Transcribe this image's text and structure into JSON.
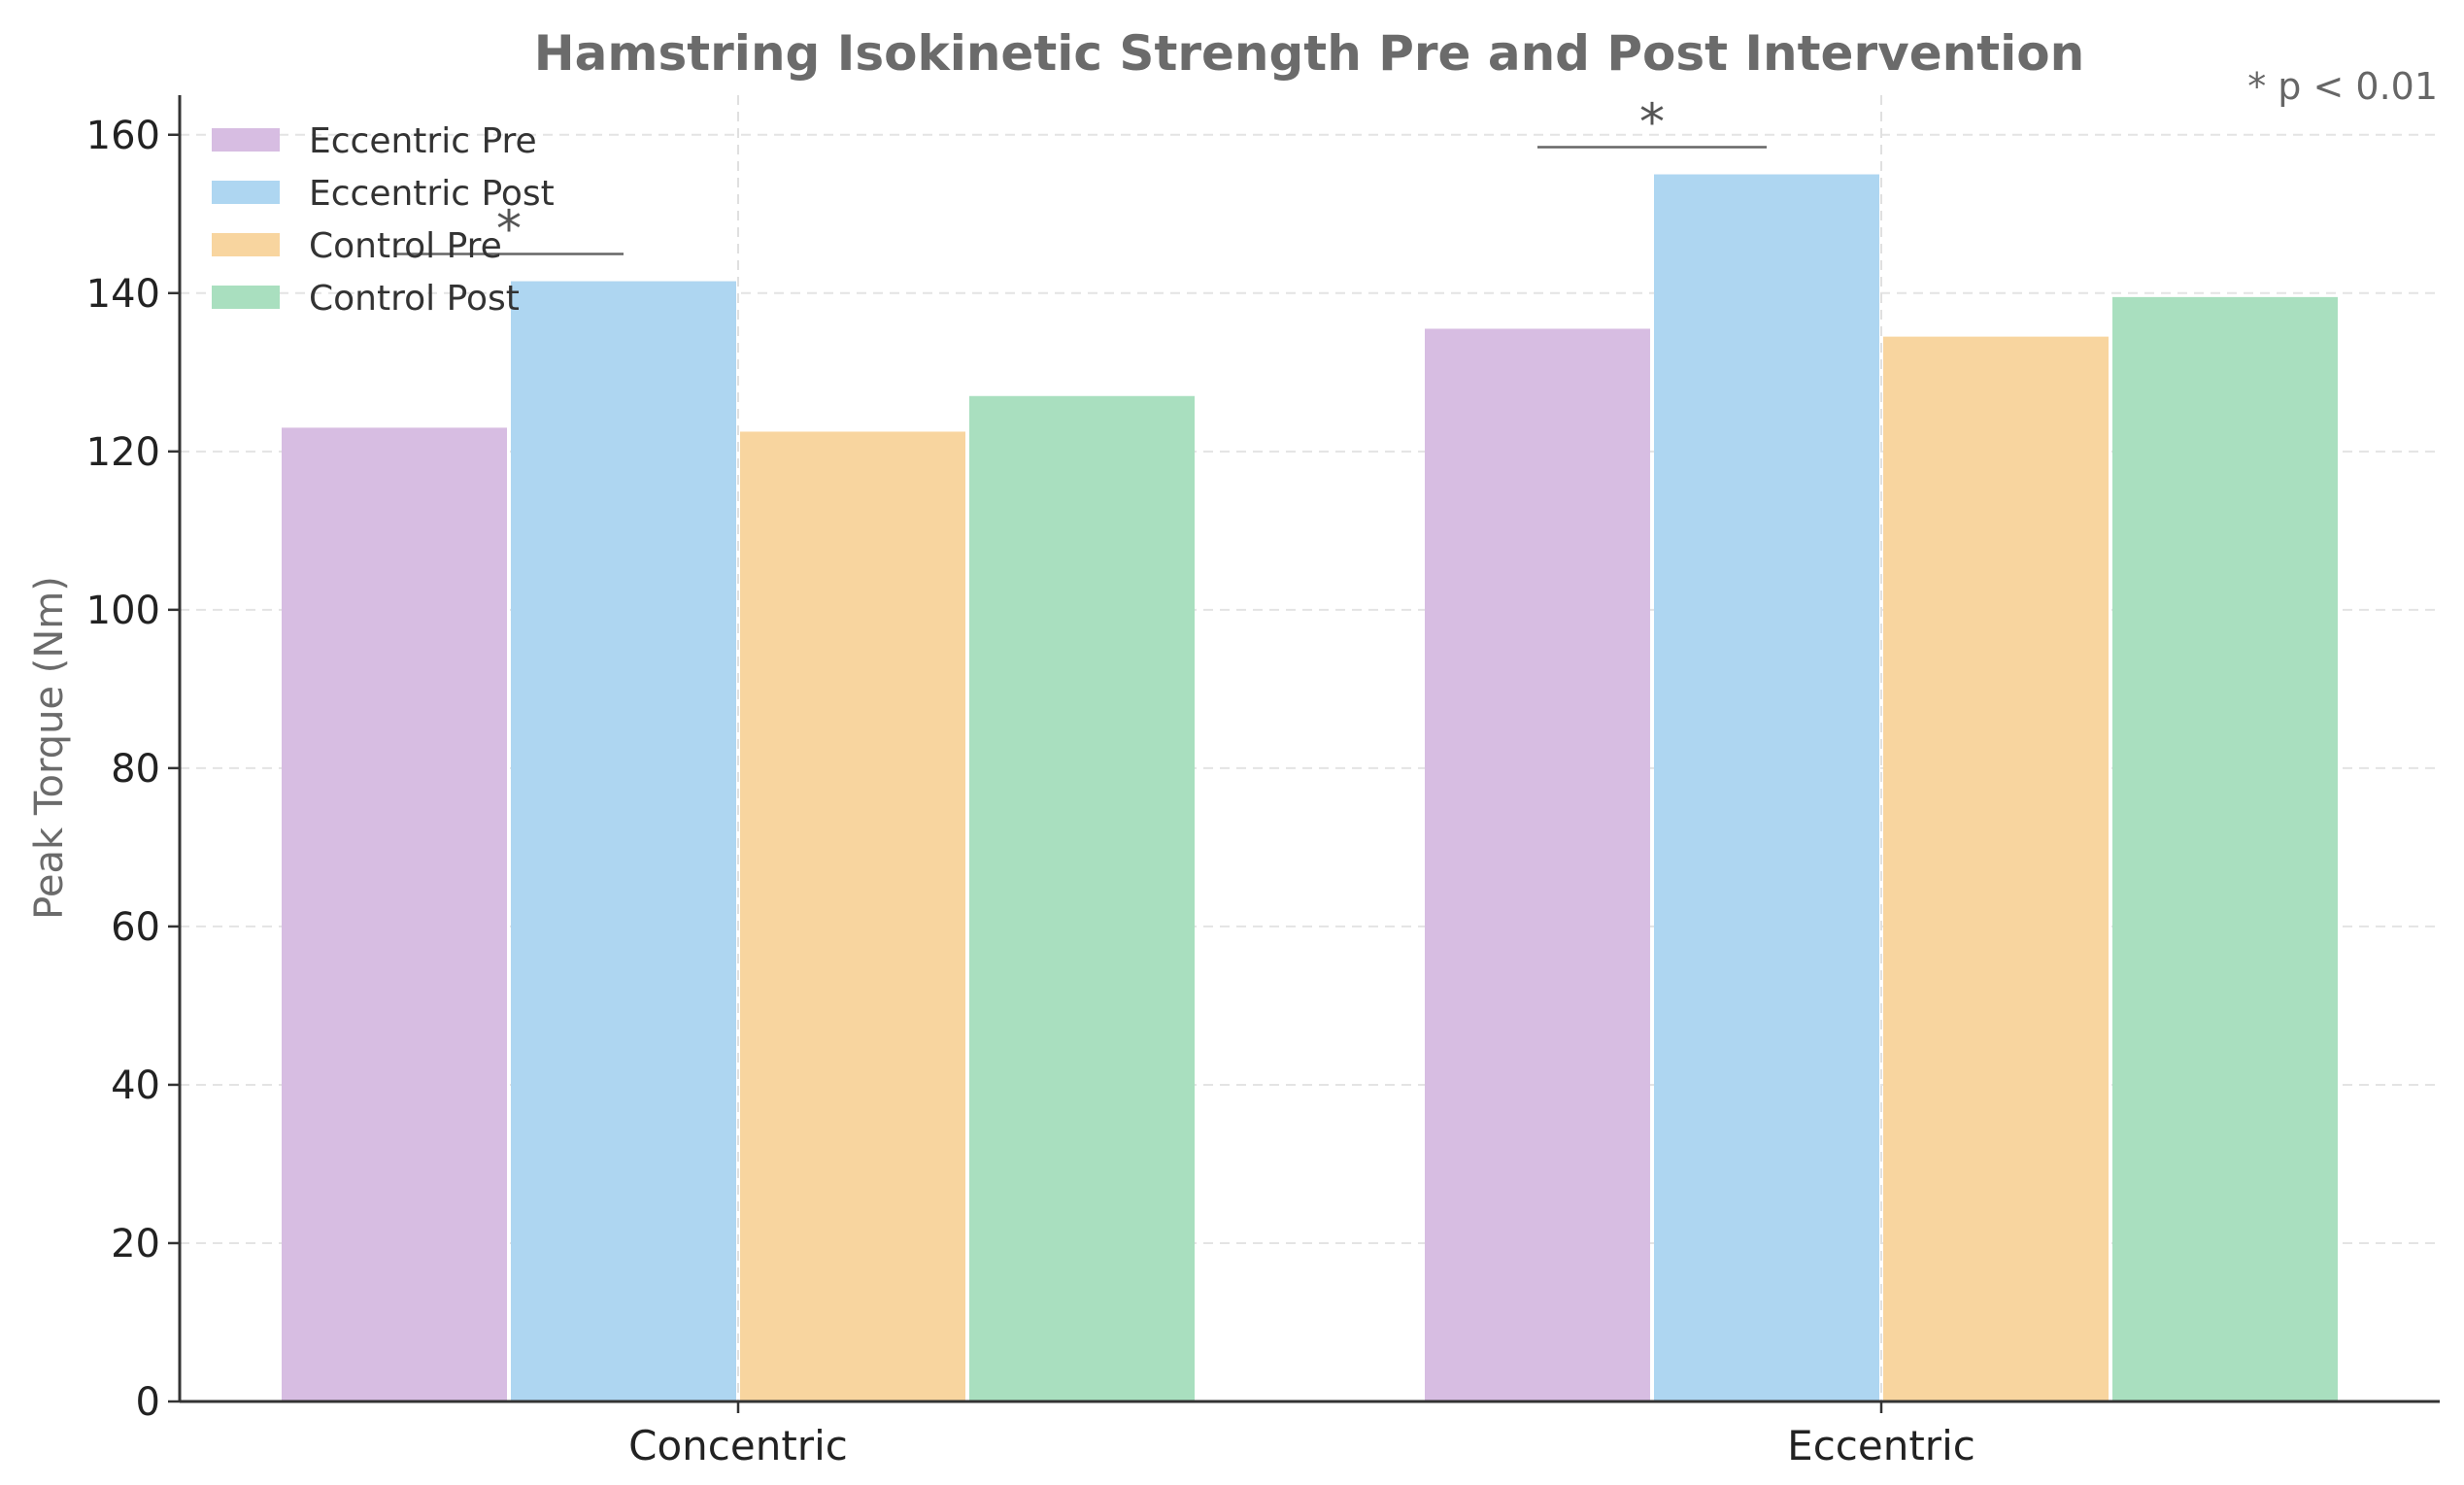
{
  "chart_data": {
    "type": "bar",
    "title": "Hamstring Isokinetic Strength Pre and Post Intervention",
    "xlabel": "",
    "ylabel": "Peak Torque (Nm)",
    "ylim": [
      0,
      165
    ],
    "yticks": [
      0,
      20,
      40,
      60,
      80,
      100,
      120,
      140,
      160
    ],
    "categories": [
      "Concentric",
      "Eccentric"
    ],
    "series": [
      {
        "name": "Eccentric Pre",
        "color": "#d7bde2",
        "values": [
          123,
          135.5
        ]
      },
      {
        "name": "Eccentric Post",
        "color": "#aed6f1",
        "values": [
          141.5,
          155
        ]
      },
      {
        "name": "Control Pre",
        "color": "#f8d59f",
        "values": [
          122.5,
          134.5
        ]
      },
      {
        "name": "Control Post",
        "color": "#a9dfbf",
        "values": [
          127,
          139.5
        ]
      }
    ],
    "significance": [
      {
        "category": "Concentric",
        "marker": "*"
      },
      {
        "category": "Eccentric",
        "marker": "*"
      }
    ],
    "significance_note": "* p < 0.01",
    "grid": true,
    "legend_position": "top-left"
  }
}
